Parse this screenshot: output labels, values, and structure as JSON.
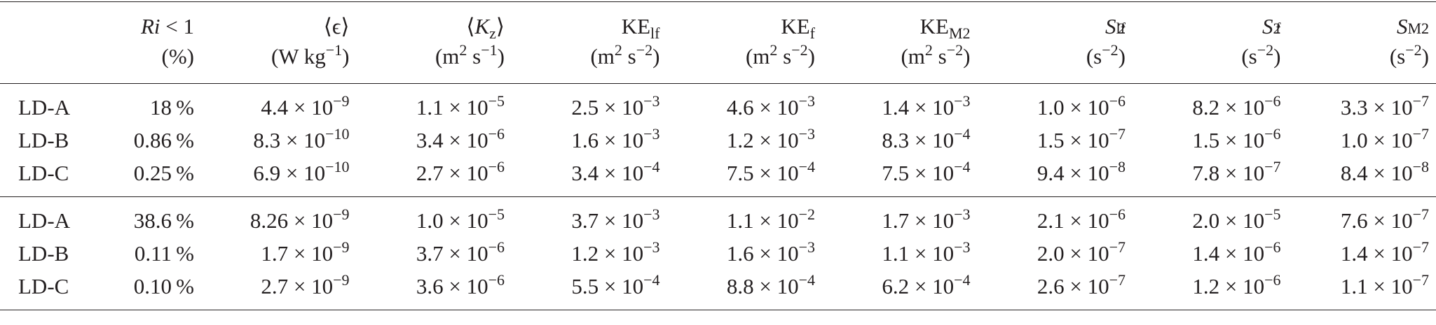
{
  "header": {
    "ri": "Ri",
    "ri_suffix": " < 1",
    "ri_unit": "(%)",
    "eps": "⟨ϵ⟩",
    "eps_unit": "(W kg⁻¹)",
    "kz": "⟨K_z⟩",
    "kz_unit": "(m² s⁻¹)",
    "ke_lf": "KE_lf",
    "ke_lf_unit": "(m² s⁻²)",
    "ke_f": "KE_f",
    "ke_f_unit": "(m² s⁻²)",
    "ke_m2": "KE_M2",
    "ke_m2_unit": "(m² s⁻²)",
    "s2_lf": "S²_lf",
    "s2_lf_unit": "(s⁻²)",
    "s2_f": "S²_f",
    "s2_f_unit": "(s⁻²)",
    "s2_m2": "S²_M2",
    "s2_m2_unit": "(s⁻²)"
  },
  "groups": [
    [
      {
        "label": "LD-A",
        "ri": "18 %",
        "cells": [
          [
            "4.4",
            "-9"
          ],
          [
            "1.1",
            "-5"
          ],
          [
            "2.5",
            "-3"
          ],
          [
            "4.6",
            "-3"
          ],
          [
            "1.4",
            "-3"
          ],
          [
            "1.0",
            "-6"
          ],
          [
            "8.2",
            "-6"
          ],
          [
            "3.3",
            "-7"
          ]
        ]
      },
      {
        "label": "LD-B",
        "ri": "0.86 %",
        "cells": [
          [
            "8.3",
            "-10"
          ],
          [
            "3.4",
            "-6"
          ],
          [
            "1.6",
            "-3"
          ],
          [
            "1.2",
            "-3"
          ],
          [
            "8.3",
            "-4"
          ],
          [
            "1.5",
            "-7"
          ],
          [
            "1.5",
            "-6"
          ],
          [
            "1.0",
            "-7"
          ]
        ]
      },
      {
        "label": "LD-C",
        "ri": "0.25 %",
        "cells": [
          [
            "6.9",
            "-10"
          ],
          [
            "2.7",
            "-6"
          ],
          [
            "3.4",
            "-4"
          ],
          [
            "7.5",
            "-4"
          ],
          [
            "7.5",
            "-4"
          ],
          [
            "9.4",
            "-8"
          ],
          [
            "7.8",
            "-7"
          ],
          [
            "8.4",
            "-8"
          ]
        ]
      }
    ],
    [
      {
        "label": "LD-A",
        "ri": "38.6 %",
        "cells": [
          [
            "8.26",
            "-9"
          ],
          [
            "1.0",
            "-5"
          ],
          [
            "3.7",
            "-3"
          ],
          [
            "1.1",
            "-2"
          ],
          [
            "1.7",
            "-3"
          ],
          [
            "2.1",
            "-6"
          ],
          [
            "2.0",
            "-5"
          ],
          [
            "7.6",
            "-7"
          ]
        ]
      },
      {
        "label": "LD-B",
        "ri": "0.11 %",
        "cells": [
          [
            "1.7",
            "-9"
          ],
          [
            "3.7",
            "-6"
          ],
          [
            "1.2",
            "-3"
          ],
          [
            "1.6",
            "-3"
          ],
          [
            "1.1",
            "-3"
          ],
          [
            "2.0",
            "-7"
          ],
          [
            "1.4",
            "-6"
          ],
          [
            "1.4",
            "-7"
          ]
        ]
      },
      {
        "label": "LD-C",
        "ri": "0.10 %",
        "cells": [
          [
            "2.7",
            "-9"
          ],
          [
            "3.6",
            "-6"
          ],
          [
            "5.5",
            "-4"
          ],
          [
            "8.8",
            "-4"
          ],
          [
            "6.2",
            "-4"
          ],
          [
            "2.6",
            "-7"
          ],
          [
            "1.2",
            "-6"
          ],
          [
            "1.1",
            "-7"
          ]
        ]
      }
    ]
  ]
}
